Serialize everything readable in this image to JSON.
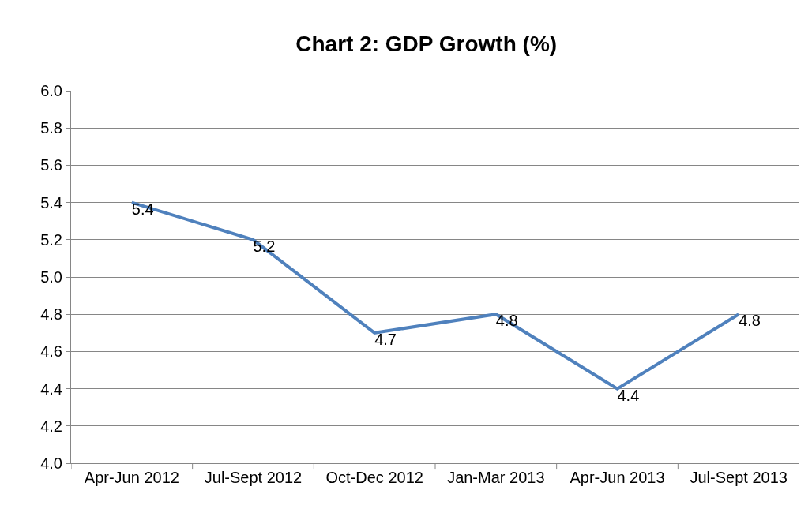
{
  "chart_data": {
    "type": "line",
    "title": "Chart 2: GDP Growth (%)",
    "categories": [
      "Apr-Jun 2012",
      "Jul-Sept 2012",
      "Oct-Dec 2012",
      "Jan-Mar 2013",
      "Apr-Jun 2013",
      "Jul-Sept 2013"
    ],
    "series": [
      {
        "color": "#4f81bd",
        "values": [
          5.4,
          5.2,
          4.7,
          4.8,
          4.4,
          4.8
        ]
      }
    ],
    "ylim": [
      4.0,
      6.0
    ],
    "yticks": [
      {
        "value": 4.0,
        "label": "4.0"
      },
      {
        "value": 4.2,
        "label": "4.2"
      },
      {
        "value": 4.4,
        "label": "4.4"
      },
      {
        "value": 4.6,
        "label": "4.6"
      },
      {
        "value": 4.8,
        "label": "4.8"
      },
      {
        "value": 5.0,
        "label": "5.0"
      },
      {
        "value": 5.2,
        "label": "5.2"
      },
      {
        "value": 5.4,
        "label": "5.4"
      },
      {
        "value": 5.6,
        "label": "5.6"
      },
      {
        "value": 5.8,
        "label": "5.8"
      },
      {
        "value": 6.0,
        "label": "6.0"
      }
    ],
    "grid": "y",
    "marker": "none",
    "line_style": "solid",
    "data_labels": true
  }
}
